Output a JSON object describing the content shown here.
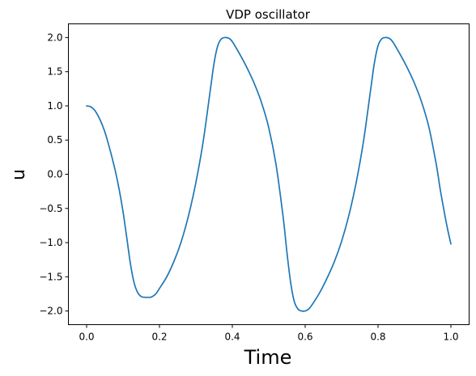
{
  "chart_data": {
    "type": "line",
    "title": "VDP oscillator",
    "xlabel": "Time",
    "ylabel": "u",
    "xlim": [
      -0.05,
      1.05
    ],
    "ylim": [
      -2.2,
      2.2
    ],
    "xticks": [
      0.0,
      0.2,
      0.4,
      0.6,
      0.8,
      1.0
    ],
    "xtick_labels": [
      "0.0",
      "0.2",
      "0.4",
      "0.6",
      "0.8",
      "1.0"
    ],
    "yticks": [
      -2.0,
      -1.5,
      -1.0,
      -0.5,
      0.0,
      0.5,
      1.0,
      1.5,
      2.0
    ],
    "ytick_labels": [
      "−2.0",
      "−1.5",
      "−1.0",
      "−0.5",
      "0.0",
      "0.5",
      "1.0",
      "1.5",
      "2.0"
    ],
    "grid": false,
    "series": [
      {
        "color": "#1f77b4",
        "x": [
          0.0,
          0.01,
          0.02,
          0.03,
          0.04,
          0.05,
          0.06,
          0.07,
          0.08,
          0.09,
          0.1,
          0.11,
          0.12,
          0.13,
          0.14,
          0.15,
          0.16,
          0.17,
          0.175,
          0.18,
          0.19,
          0.2,
          0.22,
          0.24,
          0.26,
          0.28,
          0.3,
          0.32,
          0.34,
          0.35,
          0.36,
          0.37,
          0.38,
          0.39,
          0.4,
          0.42,
          0.44,
          0.46,
          0.48,
          0.5,
          0.52,
          0.54,
          0.55,
          0.56,
          0.57,
          0.58,
          0.59,
          0.6,
          0.61,
          0.62,
          0.64,
          0.66,
          0.68,
          0.7,
          0.72,
          0.74,
          0.76,
          0.78,
          0.79,
          0.8,
          0.81,
          0.82,
          0.83,
          0.84,
          0.86,
          0.88,
          0.9,
          0.92,
          0.94,
          0.96,
          0.97,
          0.98,
          0.99,
          1.0
        ],
        "y": [
          1.0,
          0.99,
          0.95,
          0.87,
          0.76,
          0.62,
          0.44,
          0.24,
          0.02,
          -0.24,
          -0.55,
          -0.92,
          -1.3,
          -1.58,
          -1.73,
          -1.79,
          -1.8,
          -1.8,
          -1.8,
          -1.79,
          -1.75,
          -1.67,
          -1.5,
          -1.27,
          -0.98,
          -0.6,
          -0.12,
          0.48,
          1.25,
          1.63,
          1.88,
          1.98,
          2.0,
          1.99,
          1.94,
          1.76,
          1.56,
          1.33,
          1.05,
          0.68,
          0.14,
          -0.65,
          -1.15,
          -1.58,
          -1.86,
          -1.97,
          -2.0,
          -2.0,
          -1.97,
          -1.9,
          -1.73,
          -1.52,
          -1.28,
          -0.98,
          -0.6,
          -0.12,
          0.48,
          1.25,
          1.63,
          1.88,
          1.98,
          2.0,
          1.99,
          1.94,
          1.76,
          1.56,
          1.33,
          1.05,
          0.68,
          0.14,
          -0.2,
          -0.5,
          -0.78,
          -1.02
        ]
      }
    ]
  }
}
